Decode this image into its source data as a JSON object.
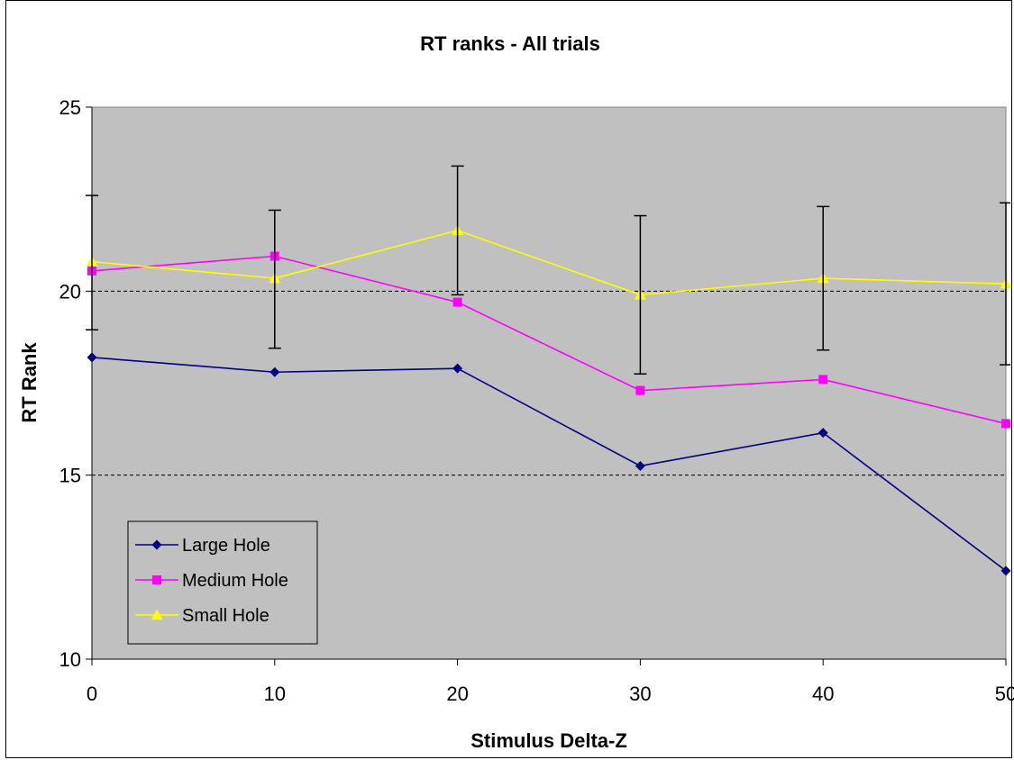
{
  "chart_data": {
    "type": "line",
    "title": "RT ranks - All trials",
    "xlabel": "Stimulus Delta-Z",
    "ylabel": "RT Rank",
    "x": [
      0,
      10,
      20,
      30,
      40,
      50
    ],
    "x_tick_labels": [
      "0",
      "10",
      "20",
      "30",
      "40",
      "50"
    ],
    "y_tick_labels": [
      "10",
      "15",
      "20",
      "25"
    ],
    "y_ticks": [
      10,
      15,
      20,
      25
    ],
    "ylim": [
      10,
      25
    ],
    "xlim": [
      0,
      50
    ],
    "grid": "horizontal dashed",
    "legend_position": "bottom-left",
    "plot_background": "#c0c0c0",
    "series": [
      {
        "name": "Large Hole",
        "values": [
          18.2,
          17.8,
          17.9,
          15.25,
          16.15,
          12.4
        ],
        "color": "#000080",
        "marker": "diamond"
      },
      {
        "name": "Medium Hole",
        "values": [
          20.55,
          20.95,
          19.7,
          17.3,
          17.6,
          16.4
        ],
        "color": "#ff00ff",
        "marker": "square"
      },
      {
        "name": "Small Hole",
        "values": [
          20.8,
          20.35,
          21.65,
          19.9,
          20.35,
          20.2
        ],
        "color": "#ffff00",
        "marker": "triangle",
        "error_low": [
          18.95,
          18.45,
          19.9,
          17.75,
          18.4,
          18.0
        ],
        "error_high": [
          22.6,
          22.2,
          23.4,
          22.05,
          22.3,
          22.4
        ]
      }
    ]
  }
}
